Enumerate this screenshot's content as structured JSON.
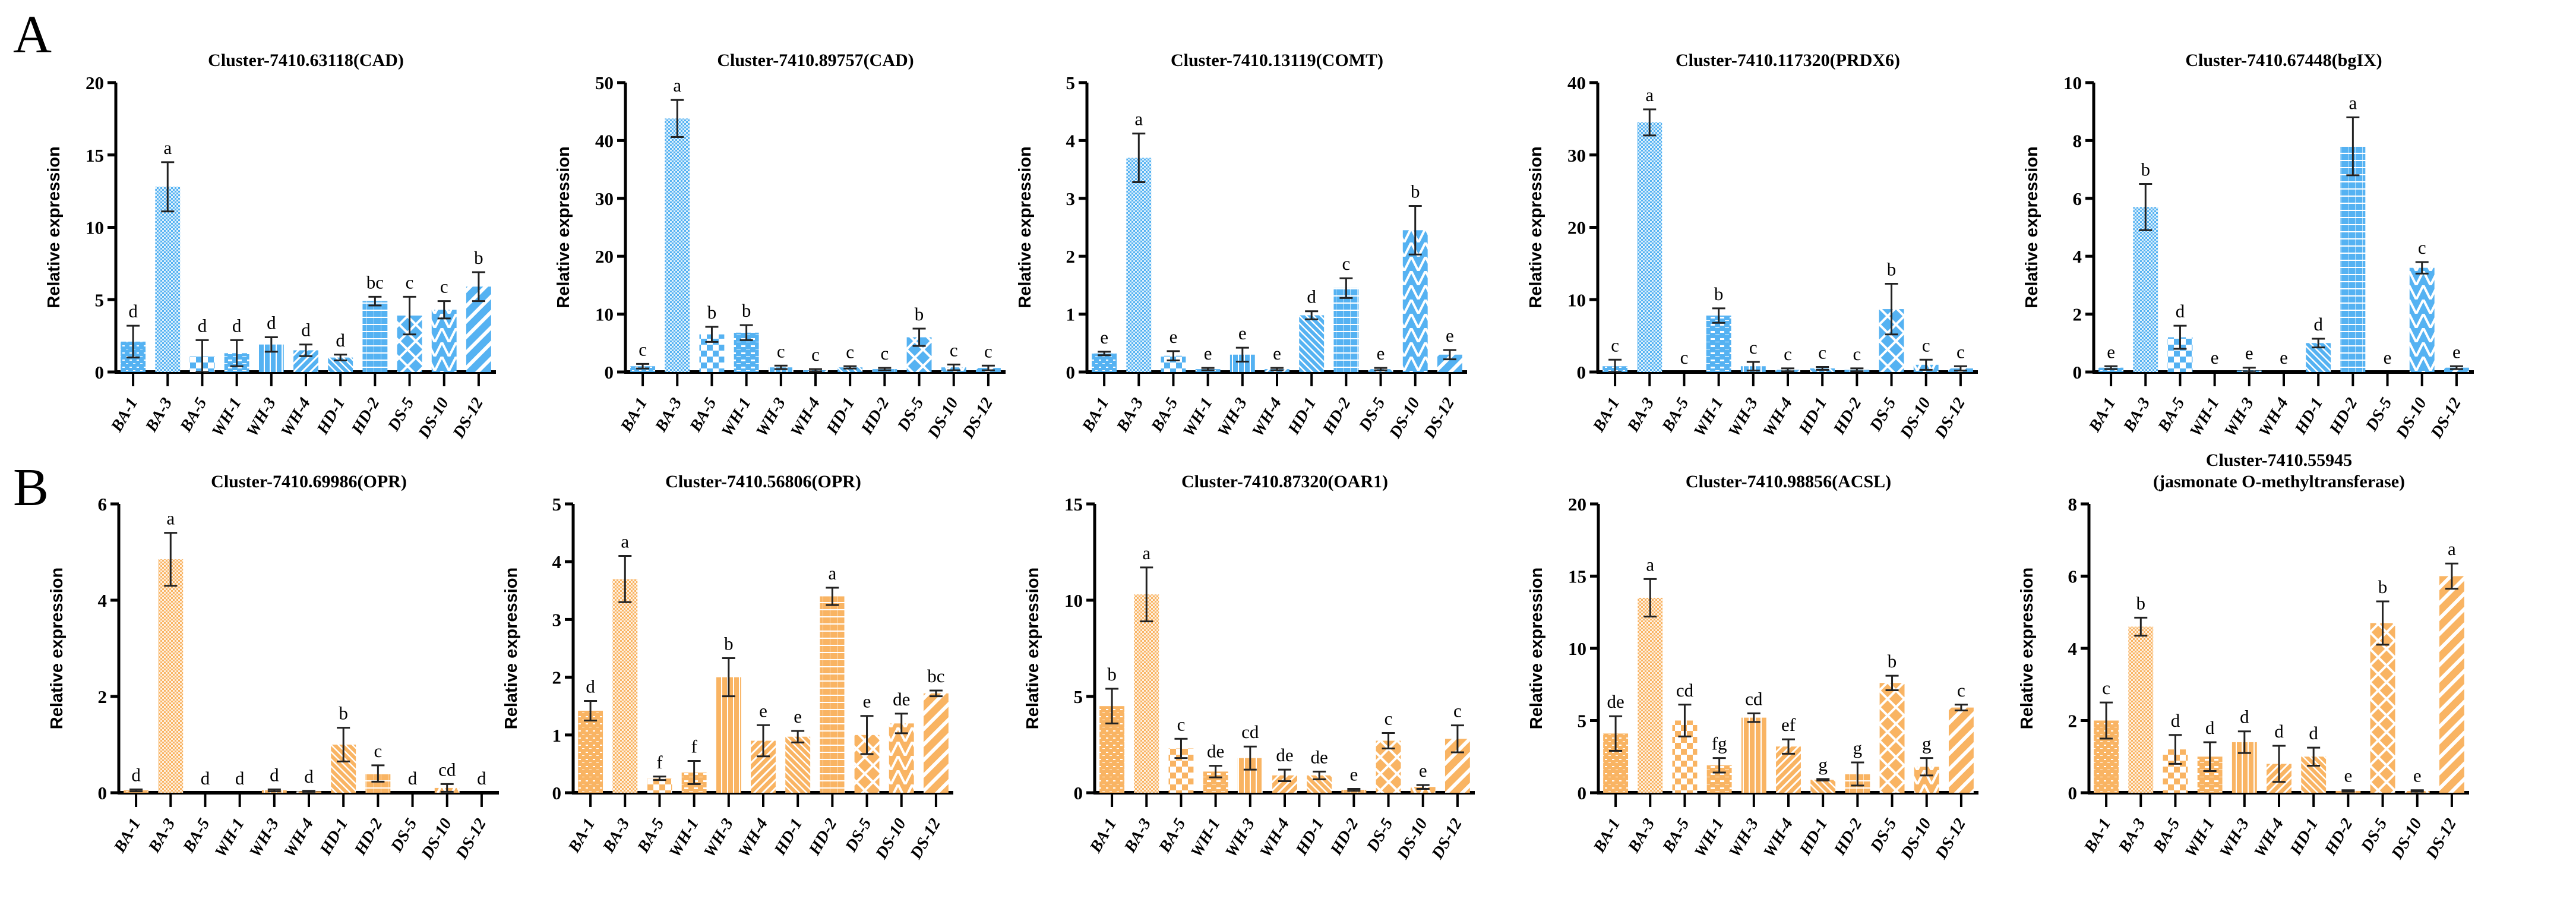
{
  "panel_labels": [
    "A",
    "B"
  ],
  "colors": {
    "blue": "#55b2f2",
    "orange": "#f9b463",
    "axis": "#000000",
    "errorbar": "#222222"
  },
  "chart_data": [
    {
      "type": "bar",
      "row": 0,
      "title": [
        "Cluster-7410.63118(CAD)"
      ],
      "ylabel": "Relative expression",
      "color": "blue",
      "categories": [
        "BA-1",
        "BA-3",
        "BA-5",
        "WH-1",
        "WH-3",
        "WH-4",
        "HD-1",
        "HD-2",
        "DS-5",
        "DS-10",
        "DS-12"
      ],
      "values": [
        2.1,
        12.8,
        1.1,
        1.3,
        1.9,
        1.5,
        1.0,
        4.9,
        3.9,
        4.3,
        5.9
      ],
      "errors": [
        1.1,
        1.7,
        1.1,
        0.9,
        0.5,
        0.4,
        0.2,
        0.3,
        1.3,
        0.6,
        1.0
      ],
      "letters": [
        "d",
        "a",
        "d",
        "d",
        "d",
        "d",
        "d",
        "bc",
        "c",
        "c",
        "b"
      ],
      "ylim": [
        0,
        20
      ],
      "ytick_step": 5
    },
    {
      "type": "bar",
      "row": 0,
      "title": [
        "Cluster-7410.89757(CAD)"
      ],
      "ylabel": "Relative expression",
      "color": "blue",
      "categories": [
        "BA-1",
        "BA-3",
        "BA-5",
        "WH-1",
        "WH-3",
        "WH-4",
        "HD-1",
        "HD-2",
        "DS-5",
        "DS-10",
        "DS-12"
      ],
      "values": [
        1.0,
        43.8,
        6.5,
        6.8,
        0.8,
        0.3,
        0.8,
        0.5,
        6.0,
        0.8,
        0.7
      ],
      "errors": [
        0.4,
        3.2,
        1.3,
        1.3,
        0.3,
        0.2,
        0.2,
        0.2,
        1.5,
        0.5,
        0.4
      ],
      "letters": [
        "c",
        "a",
        "b",
        "b",
        "c",
        "c",
        "c",
        "c",
        "b",
        "c",
        "c"
      ],
      "ylim": [
        0,
        50
      ],
      "ytick_step": 10
    },
    {
      "type": "bar",
      "row": 0,
      "title": [
        "Cluster-7410.13119(COMT)"
      ],
      "ylabel": "Relative expression",
      "color": "blue",
      "categories": [
        "BA-1",
        "BA-3",
        "BA-5",
        "WH-1",
        "WH-3",
        "WH-4",
        "HD-1",
        "HD-2",
        "DS-5",
        "DS-10",
        "DS-12"
      ],
      "values": [
        0.32,
        3.7,
        0.28,
        0.05,
        0.3,
        0.05,
        0.98,
        1.45,
        0.05,
        2.45,
        0.3
      ],
      "errors": [
        0.03,
        0.42,
        0.08,
        0.02,
        0.12,
        0.02,
        0.07,
        0.17,
        0.02,
        0.42,
        0.08
      ],
      "letters": [
        "e",
        "a",
        "e",
        "e",
        "e",
        "e",
        "d",
        "c",
        "e",
        "b",
        "e"
      ],
      "ylim": [
        0,
        5
      ],
      "ytick_step": 1
    },
    {
      "type": "bar",
      "row": 0,
      "title": [
        "Cluster-7410.117320(PRDX6)"
      ],
      "ylabel": "Relative expression",
      "color": "blue",
      "categories": [
        "BA-1",
        "BA-3",
        "BA-5",
        "WH-1",
        "WH-3",
        "WH-4",
        "HD-1",
        "HD-2",
        "DS-5",
        "DS-10",
        "DS-12"
      ],
      "values": [
        0.8,
        34.5,
        0,
        7.8,
        0.8,
        0.3,
        0.5,
        0.3,
        8.7,
        1.0,
        0.5
      ],
      "errors": [
        0.9,
        1.8,
        0,
        1.0,
        0.6,
        0.2,
        0.2,
        0.2,
        3.5,
        0.7,
        0.3
      ],
      "letters": [
        "c",
        "a",
        "c",
        "b",
        "c",
        "c",
        "c",
        "c",
        "b",
        "c",
        "c"
      ],
      "ylim": [
        0,
        40
      ],
      "ytick_step": 10
    },
    {
      "type": "bar",
      "row": 0,
      "title": [
        "Cluster-7410.67448(bgIX)"
      ],
      "ylabel": "Relative expression",
      "color": "blue",
      "categories": [
        "BA-1",
        "BA-3",
        "BA-5",
        "WH-1",
        "WH-3",
        "WH-4",
        "HD-1",
        "HD-2",
        "DS-5",
        "DS-10",
        "DS-12"
      ],
      "values": [
        0.15,
        5.7,
        1.2,
        0,
        0.05,
        0,
        1.0,
        7.8,
        0,
        3.6,
        0.15
      ],
      "errors": [
        0.05,
        0.8,
        0.4,
        0,
        0.1,
        0,
        0.15,
        1.0,
        0,
        0.2,
        0.05
      ],
      "letters": [
        "e",
        "b",
        "d",
        "e",
        "e",
        "e",
        "d",
        "a",
        "e",
        "c",
        "e"
      ],
      "ylim": [
        0,
        10
      ],
      "ytick_step": 2
    },
    {
      "type": "bar",
      "row": 1,
      "title": [
        "Cluster-7410.69986(OPR)"
      ],
      "ylabel": "Relative expression",
      "color": "orange",
      "categories": [
        "BA-1",
        "BA-3",
        "BA-5",
        "WH-1",
        "WH-3",
        "WH-4",
        "HD-1",
        "HD-2",
        "DS-5",
        "DS-10",
        "DS-12"
      ],
      "values": [
        0.05,
        4.85,
        0,
        0,
        0.05,
        0.03,
        1.0,
        0.4,
        0,
        0.1,
        0
      ],
      "errors": [
        0.02,
        0.55,
        0,
        0,
        0.02,
        0.01,
        0.35,
        0.17,
        0,
        0.08,
        0
      ],
      "letters": [
        "d",
        "a",
        "d",
        "d",
        "d",
        "d",
        "b",
        "c",
        "d",
        "cd",
        "d"
      ],
      "ylim": [
        0,
        6
      ],
      "ytick_step": 2
    },
    {
      "type": "bar",
      "row": 1,
      "title": [
        "Cluster-7410.56806(OPR)"
      ],
      "ylabel": "Relative expression",
      "color": "orange",
      "categories": [
        "BA-1",
        "BA-3",
        "BA-5",
        "WH-1",
        "WH-3",
        "WH-4",
        "HD-1",
        "HD-2",
        "DS-5",
        "DS-10",
        "DS-12"
      ],
      "values": [
        1.42,
        3.7,
        0.25,
        0.35,
        2.0,
        0.9,
        0.97,
        3.4,
        1.0,
        1.2,
        1.72
      ],
      "errors": [
        0.17,
        0.4,
        0.03,
        0.2,
        0.33,
        0.27,
        0.1,
        0.15,
        0.33,
        0.17,
        0.05
      ],
      "letters": [
        "d",
        "a",
        "f",
        "f",
        "b",
        "e",
        "e",
        "a",
        "e",
        "de",
        "bc"
      ],
      "ylim": [
        0,
        5
      ],
      "ytick_step": 1
    },
    {
      "type": "bar",
      "row": 1,
      "title": [
        "Cluster-7410.87320(OAR1)"
      ],
      "ylabel": "Relative expression",
      "color": "orange",
      "categories": [
        "BA-1",
        "BA-3",
        "BA-5",
        "WH-1",
        "WH-3",
        "WH-4",
        "HD-1",
        "HD-2",
        "DS-5",
        "DS-10",
        "DS-12"
      ],
      "values": [
        4.5,
        10.3,
        2.3,
        1.1,
        1.8,
        0.9,
        0.9,
        0.15,
        2.7,
        0.3,
        2.8
      ],
      "errors": [
        0.9,
        1.4,
        0.5,
        0.3,
        0.6,
        0.3,
        0.2,
        0.05,
        0.4,
        0.1,
        0.7
      ],
      "letters": [
        "b",
        "a",
        "c",
        "de",
        "cd",
        "de",
        "de",
        "e",
        "c",
        "e",
        "c"
      ],
      "ylim": [
        0,
        15
      ],
      "ytick_step": 5
    },
    {
      "type": "bar",
      "row": 1,
      "title": [
        "Cluster-7410.98856(ACSL)"
      ],
      "ylabel": "Relative expression",
      "color": "orange",
      "categories": [
        "BA-1",
        "BA-3",
        "BA-5",
        "WH-1",
        "WH-3",
        "WH-4",
        "HD-1",
        "HD-2",
        "DS-5",
        "DS-10",
        "DS-12"
      ],
      "values": [
        4.1,
        13.5,
        5.0,
        1.9,
        5.2,
        3.2,
        0.9,
        1.3,
        7.6,
        1.8,
        5.9
      ],
      "errors": [
        1.2,
        1.3,
        1.1,
        0.5,
        0.3,
        0.5,
        0.05,
        0.8,
        0.5,
        0.6,
        0.2
      ],
      "letters": [
        "de",
        "a",
        "cd",
        "fg",
        "cd",
        "ef",
        "g",
        "g",
        "b",
        "g",
        "c"
      ],
      "ylim": [
        0,
        20
      ],
      "ytick_step": 5
    },
    {
      "type": "bar",
      "row": 1,
      "title": [
        "Cluster-7410.55945",
        "(jasmonate O-methyltransferase)"
      ],
      "ylabel": "Relative expression",
      "color": "orange",
      "categories": [
        "BA-1",
        "BA-3",
        "BA-5",
        "WH-1",
        "WH-3",
        "WH-4",
        "HD-1",
        "HD-2",
        "DS-5",
        "DS-10",
        "DS-12"
      ],
      "values": [
        2.0,
        4.6,
        1.2,
        1.0,
        1.4,
        0.8,
        1.0,
        0.05,
        4.7,
        0.05,
        6.0
      ],
      "errors": [
        0.5,
        0.25,
        0.4,
        0.4,
        0.3,
        0.5,
        0.25,
        0.02,
        0.6,
        0.02,
        0.35
      ],
      "letters": [
        "c",
        "b",
        "d",
        "d",
        "d",
        "d",
        "d",
        "e",
        "b",
        "e",
        "a"
      ],
      "ylim": [
        0,
        8
      ],
      "ytick_step": 2
    }
  ]
}
